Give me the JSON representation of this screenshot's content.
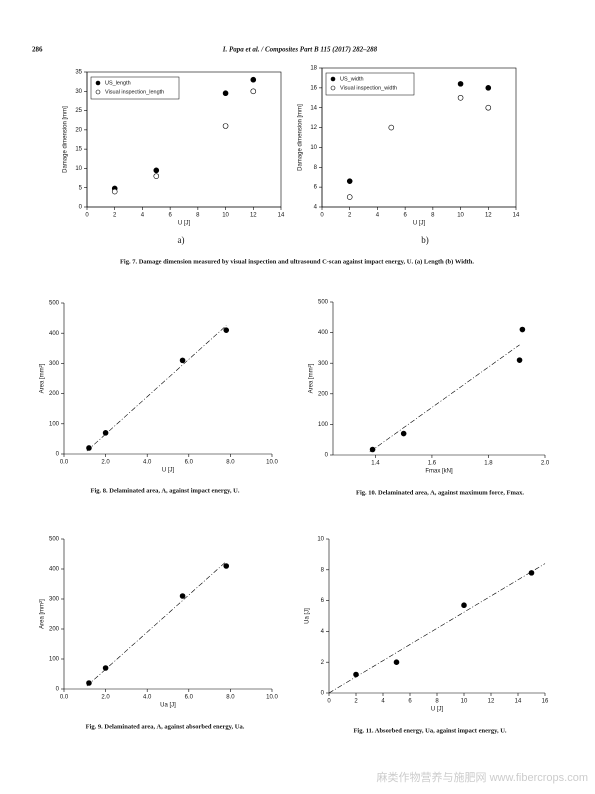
{
  "header": {
    "page": "286",
    "journal": "I. Papa et al. / Composites Part B 115 (2017) 282–288"
  },
  "sublabels": [
    "a)",
    "b)"
  ],
  "captions": [
    "Fig. 7. Damage dimension measured by visual inspection and ultrasound C-scan against impact energy, U. (a) Length (b) Width.",
    "Fig. 8. Delaminated area, A, against impact energy, U.",
    "Fig. 10. Delaminated area, A, against maximum force, Fmax.",
    "Fig. 9. Delaminated area, A, against absorbed energy, Ua.",
    "Fig. 11. Absorbed energy, Ua, against impact energy, U."
  ],
  "watermark": "麻类作物营养与施肥网 www.fibercrops.com",
  "chart_data": [
    {
      "type": "scatter",
      "xlabel": "U [J]",
      "ylabel": "Damage dimension [mm]",
      "xlim": [
        0,
        14
      ],
      "xticks": [
        0,
        2,
        4,
        6,
        8,
        10,
        12,
        14
      ],
      "ylim": [
        0,
        35
      ],
      "yticks": [
        0,
        5,
        10,
        15,
        20,
        25,
        30,
        35
      ],
      "legend": "upper left",
      "series": [
        {
          "name": "US_length",
          "color": "#000000",
          "marker": "filled",
          "x": [
            2,
            5,
            10,
            12
          ],
          "values": [
            4.8,
            9.5,
            29.5,
            33
          ]
        },
        {
          "name": "Visual inspection_length",
          "color": "#000000",
          "marker": "open",
          "x": [
            2,
            5,
            10,
            12
          ],
          "values": [
            4,
            8,
            21,
            30
          ]
        }
      ]
    },
    {
      "type": "scatter",
      "xlabel": "U [J]",
      "ylabel": "Damage dimension [mm]",
      "xlim": [
        0,
        14
      ],
      "xticks": [
        0,
        2,
        4,
        6,
        8,
        10,
        12,
        14
      ],
      "ylim": [
        4,
        18
      ],
      "yticks": [
        4,
        6,
        8,
        10,
        12,
        14,
        16,
        18
      ],
      "legend": "upper left",
      "series": [
        {
          "name": "US_width",
          "color": "#000000",
          "marker": "filled",
          "x": [
            2,
            10,
            12
          ],
          "values": [
            6.6,
            16.4,
            16
          ]
        },
        {
          "name": "Visual inspection_width",
          "color": "#000000",
          "marker": "open",
          "x": [
            2,
            5,
            10,
            12
          ],
          "values": [
            5,
            12,
            15,
            14
          ]
        }
      ]
    },
    {
      "type": "scatter",
      "xlabel": "U [J]",
      "ylabel": "Area [mm²]",
      "xlim": [
        0,
        10
      ],
      "xticks": [
        {
          "value": 0,
          "label": "0.0"
        },
        {
          "value": 2,
          "label": "2.0"
        },
        {
          "value": 4,
          "label": "4.0"
        },
        {
          "value": 6,
          "label": "6.0"
        },
        {
          "value": 8,
          "label": "8.0"
        },
        {
          "value": 10,
          "label": "10.0"
        }
      ],
      "ylim": [
        0,
        500
      ],
      "yticks": [
        0,
        100,
        200,
        300,
        400,
        500
      ],
      "series": [
        {
          "color": "#000000",
          "marker": "filled",
          "x": [
            1.2,
            2,
            5.7,
            7.8
          ],
          "values": [
            20,
            70,
            310,
            410
          ]
        }
      ],
      "trendline": {
        "x": [
          1.1,
          7.8
        ],
        "values": [
          10,
          425
        ]
      }
    },
    {
      "type": "scatter",
      "xlabel": "Fmax [kN]",
      "ylabel": "Area [mm²]",
      "xlim": [
        1.25,
        2
      ],
      "xticks": [
        1.4,
        1.6,
        1.8,
        {
          "value": 2,
          "label": "2.0"
        }
      ],
      "ylim": [
        0,
        500
      ],
      "yticks": [
        0,
        100,
        200,
        300,
        400,
        500
      ],
      "series": [
        {
          "color": "#000000",
          "marker": "filled",
          "x": [
            1.39,
            1.5,
            1.91,
            1.92
          ],
          "values": [
            18,
            70,
            310,
            410
          ]
        }
      ],
      "trendline": {
        "x": [
          1.38,
          1.91
        ],
        "values": [
          10,
          360
        ]
      }
    },
    {
      "type": "scatter",
      "xlabel": "Ua [J]",
      "ylabel": "Area [mm²]",
      "xlim": [
        0,
        10
      ],
      "xticks": [
        {
          "value": 0,
          "label": "0.0"
        },
        {
          "value": 2,
          "label": "2.0"
        },
        {
          "value": 4,
          "label": "4.0"
        },
        {
          "value": 6,
          "label": "6.0"
        },
        {
          "value": 8,
          "label": "8.0"
        },
        {
          "value": 10,
          "label": "10.0"
        }
      ],
      "ylim": [
        0,
        500
      ],
      "yticks": [
        0,
        100,
        200,
        300,
        400,
        500
      ],
      "series": [
        {
          "color": "#000000",
          "marker": "filled",
          "x": [
            1.2,
            2,
            5.7,
            7.8
          ],
          "values": [
            20,
            70,
            310,
            410
          ]
        }
      ],
      "trendline": {
        "x": [
          1.1,
          7.8
        ],
        "values": [
          10,
          425
        ]
      }
    },
    {
      "type": "scatter",
      "xlabel": "U [J]",
      "ylabel": "Ua [J]",
      "xlim": [
        0,
        16
      ],
      "xticks": [
        0,
        2,
        4,
        6,
        8,
        10,
        12,
        14,
        16
      ],
      "ylim": [
        0,
        10
      ],
      "yticks": [
        0,
        2,
        4,
        6,
        8,
        10
      ],
      "series": [
        {
          "color": "#000000",
          "marker": "filled",
          "x": [
            2,
            5,
            10,
            15
          ],
          "values": [
            1.2,
            2,
            5.7,
            7.8
          ]
        }
      ],
      "trendline": {
        "x": [
          0,
          16
        ],
        "values": [
          0,
          8.4
        ]
      }
    }
  ]
}
